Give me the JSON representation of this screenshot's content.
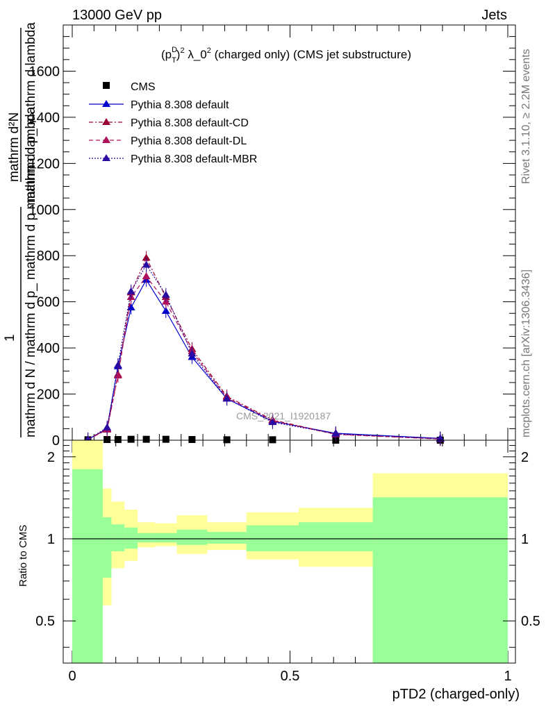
{
  "header": {
    "left": "13000 GeV pp",
    "right": "Jets"
  },
  "side": {
    "top": "Rivet 3.1.10, ≥ 2.2M events",
    "bottom": "mcplots.cern.ch [arXiv:1306.3436]"
  },
  "colors": {
    "data": "#000000",
    "default": "#0000cc",
    "cd": "#990033",
    "dl": "#b0105a",
    "mbr": "#2a0aa0",
    "band_inner": "#99ff99",
    "band_outer": "#ffff99"
  },
  "chart_data": {
    "type": "line",
    "title": "(p_T^D)^2 λ_0^2 (charged only) (CMS jet substructure)",
    "title_parts": {
      "a": "(p",
      "sup": "D",
      "sub": "T",
      "b": ")",
      "c": "2",
      "d": " λ_0",
      "e": "2",
      "f": " (charged only) (CMS jet substructure)"
    },
    "watermark": "CMS_2021_I1920187",
    "xlabel": "pTD2 (charged-only)",
    "ylabel": {
      "numer": "1",
      "denom": "mathrm d N / mathrm d p_ mathrm d p mathrm d lambda",
      "top_numer": "mathrm d²N",
      "top_denom": "mathrm d p_ mathrm d lambda"
    },
    "ratio_ylabel": "Ratio to CMS",
    "xlim": [
      0,
      1
    ],
    "ylim": [
      0,
      1800
    ],
    "ratio_ylim": [
      0.35,
      2.3
    ],
    "ratio_log": true,
    "x_ticks": [
      "0",
      "0.5",
      "1"
    ],
    "y_ticks": [
      "0",
      "200",
      "400",
      "600",
      "800",
      "1000",
      "1200",
      "1400",
      "1600"
    ],
    "ratio_ticks": [
      "0.5",
      "1",
      "2"
    ],
    "legend": [
      "CMS",
      "Pythia 8.308 default",
      "Pythia 8.308 default-CD",
      "Pythia 8.308 default-DL",
      "Pythia 8.308 default-MBR"
    ],
    "x": [
      0.036,
      0.08,
      0.105,
      0.135,
      0.17,
      0.215,
      0.275,
      0.355,
      0.46,
      0.605,
      0.845
    ],
    "bins": [
      [
        0.0,
        0.07
      ],
      [
        0.07,
        0.09
      ],
      [
        0.09,
        0.12
      ],
      [
        0.12,
        0.15
      ],
      [
        0.15,
        0.19
      ],
      [
        0.19,
        0.24
      ],
      [
        0.24,
        0.31
      ],
      [
        0.31,
        0.4
      ],
      [
        0.4,
        0.52
      ],
      [
        0.52,
        0.69
      ],
      [
        0.69,
        1.0
      ]
    ],
    "data_y": [
      2,
      3,
      3,
      4,
      4,
      4,
      3,
      2,
      2,
      0,
      0
    ],
    "series": [
      {
        "name": "Pythia 8.308 default",
        "key": "default",
        "dash": "",
        "values": [
          3,
          50,
          320,
          575,
          695,
          560,
          360,
          180,
          82,
          30,
          8
        ]
      },
      {
        "name": "Pythia 8.308 default-CD",
        "key": "cd",
        "dash": "6,3,2,3",
        "values": [
          3,
          48,
          285,
          640,
          790,
          620,
          395,
          190,
          88,
          26,
          6
        ]
      },
      {
        "name": "Pythia 8.308 default-DL",
        "key": "dl",
        "dash": "6,4",
        "values": [
          3,
          45,
          280,
          620,
          710,
          600,
          385,
          185,
          85,
          25,
          5
        ]
      },
      {
        "name": "Pythia 8.308 default-MBR",
        "key": "mbr",
        "dash": "2,2",
        "values": [
          3,
          55,
          325,
          645,
          760,
          630,
          375,
          180,
          78,
          28,
          6
        ]
      }
    ],
    "ratio_bands": {
      "inner_lo": [
        0.35,
        0.72,
        0.9,
        0.92,
        0.97,
        0.97,
        0.95,
        0.96,
        0.9,
        0.9,
        0.35
      ],
      "inner_hi": [
        1.8,
        1.2,
        1.13,
        1.1,
        1.05,
        1.05,
        1.08,
        1.06,
        1.12,
        1.15,
        1.42
      ],
      "outer_lo": [
        0.35,
        0.57,
        0.78,
        0.83,
        0.93,
        0.94,
        0.88,
        0.91,
        0.84,
        0.79,
        0.35
      ],
      "outer_hi": [
        2.3,
        1.53,
        1.37,
        1.28,
        1.15,
        1.14,
        1.22,
        1.15,
        1.25,
        1.3,
        1.74
      ]
    }
  }
}
